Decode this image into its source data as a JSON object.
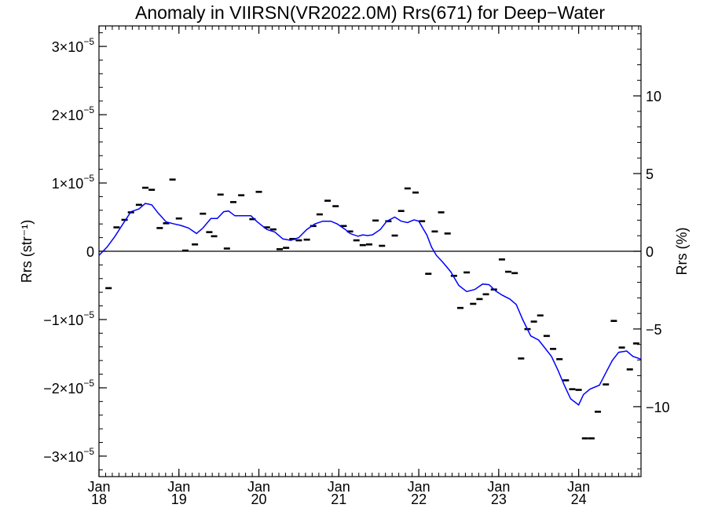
{
  "chart_data": {
    "type": "line",
    "title": "Anomaly in VIIRSN(VR2022.0M) Rrs(671) for Deep−Water",
    "ylabel_left": "Rrs (str⁻¹)",
    "ylabel_right": "Rrs (%)",
    "xlabel": "",
    "xlim": [
      2018.0,
      2024.78
    ],
    "ylim_left": [
      -3.3e-05,
      3.3e-05
    ],
    "ylim_right": [
      -14.5,
      14.5
    ],
    "grid": false,
    "legend": "none",
    "colors": {
      "line": "#0000ff",
      "markers": "#000000",
      "zero_line": "#000000"
    },
    "left_ticks": [
      {
        "value": 3e-05,
        "mant": "3×10",
        "exp": "−5"
      },
      {
        "value": 2e-05,
        "mant": "2×10",
        "exp": "−5"
      },
      {
        "value": 1e-05,
        "mant": "1×10",
        "exp": "−5"
      },
      {
        "value": 0,
        "mant": "0",
        "exp": ""
      },
      {
        "value": -1e-05,
        "mant": "−1×10",
        "exp": "−5"
      },
      {
        "value": -2e-05,
        "mant": "−2×10",
        "exp": "−5"
      },
      {
        "value": -3e-05,
        "mant": "−3×10",
        "exp": "−5"
      }
    ],
    "right_ticks": [
      {
        "value": 10,
        "label": "10"
      },
      {
        "value": 5,
        "label": "5"
      },
      {
        "value": 0,
        "label": "0"
      },
      {
        "value": -5,
        "label": "−5"
      },
      {
        "value": -10,
        "label": "−10"
      }
    ],
    "x_ticks": [
      {
        "value": 2018,
        "month": "Jan",
        "year": "18"
      },
      {
        "value": 2019,
        "month": "Jan",
        "year": "19"
      },
      {
        "value": 2020,
        "month": "Jan",
        "year": "20"
      },
      {
        "value": 2021,
        "month": "Jan",
        "year": "21"
      },
      {
        "value": 2022,
        "month": "Jan",
        "year": "22"
      },
      {
        "value": 2023,
        "month": "Jan",
        "year": "23"
      },
      {
        "value": 2024,
        "month": "Jan",
        "year": "24"
      }
    ],
    "series": [
      {
        "kind": "points",
        "x": [
          2018.12,
          2018.22,
          2018.32,
          2018.4,
          2018.5,
          2018.58,
          2018.66,
          2018.76,
          2018.84,
          2018.92,
          2019.0,
          2019.08,
          2019.2,
          2019.3,
          2019.38,
          2019.44,
          2019.52,
          2019.6,
          2019.68,
          2019.78,
          2019.92,
          2020.0,
          2020.1,
          2020.18,
          2020.26,
          2020.34,
          2020.42,
          2020.5,
          2020.6,
          2020.68,
          2020.76,
          2020.86,
          2020.96,
          2021.06,
          2021.14,
          2021.22,
          2021.3,
          2021.38,
          2021.46,
          2021.54,
          2021.62,
          2021.7,
          2021.78,
          2021.86,
          2021.96,
          2022.04,
          2022.12,
          2022.2,
          2022.28,
          2022.36,
          2022.44,
          2022.52,
          2022.6,
          2022.68,
          2022.76,
          2022.84,
          2022.94,
          2023.04,
          2023.12,
          2023.2,
          2023.28,
          2023.36,
          2023.44,
          2023.52,
          2023.6,
          2023.68,
          2023.76,
          2023.84,
          2023.92,
          2024.0,
          2024.08,
          2024.16,
          2024.24,
          2024.34,
          2024.44,
          2024.54,
          2024.64,
          2024.72
        ],
        "y": [
          -5.4e-06,
          3.5e-06,
          4.6e-06,
          5.7e-06,
          6.8e-06,
          9.3e-06,
          9e-06,
          3.4e-06,
          4.1e-06,
          1.05e-05,
          4.8e-06,
          1e-07,
          1e-06,
          5.5e-06,
          2.8e-06,
          2.2e-06,
          8.3e-06,
          4e-07,
          7.2e-06,
          8.2e-06,
          4.7e-06,
          8.7e-06,
          3.5e-06,
          3.2e-06,
          3e-07,
          5e-07,
          1.8e-06,
          1.6e-06,
          1.7e-06,
          3.7e-06,
          5.4e-06,
          7.4e-06,
          6.6e-06,
          3.7e-06,
          2.9e-06,
          1.6e-06,
          9e-07,
          1e-06,
          4.5e-06,
          8e-07,
          4.4e-06,
          2.3e-06,
          5.9e-06,
          9.2e-06,
          8.6e-06,
          4.4e-06,
          -3.3e-06,
          2.9e-06,
          5.7e-06,
          2.6e-06,
          -3.6e-06,
          -8.3e-06,
          -3.1e-06,
          -7.7e-06,
          -7e-06,
          -6.3e-06,
          -5.6e-06,
          -1.2e-06,
          -3e-06,
          -3.2e-06,
          -1.57e-05,
          -1.14e-05,
          -1.03e-05,
          -9.4e-06,
          -1.24e-05,
          -1.43e-05,
          -1.58e-05,
          -1.89e-05,
          -2.02e-05,
          -2.03e-05,
          -2.74e-05,
          -2.74e-05,
          -2.35e-05,
          -1.95e-05,
          -1.02e-05,
          -1.41e-05,
          -1.73e-05,
          -1.35e-05
        ]
      },
      {
        "kind": "line",
        "x": [
          2018.0,
          2018.1,
          2018.2,
          2018.3,
          2018.4,
          2018.5,
          2018.58,
          2018.66,
          2018.74,
          2018.84,
          2018.94,
          2019.02,
          2019.12,
          2019.22,
          2019.3,
          2019.4,
          2019.48,
          2019.56,
          2019.62,
          2019.7,
          2019.8,
          2019.9,
          2019.98,
          2020.1,
          2020.2,
          2020.3,
          2020.4,
          2020.5,
          2020.6,
          2020.7,
          2020.8,
          2020.9,
          2020.98,
          2021.08,
          2021.14,
          2021.24,
          2021.3,
          2021.36,
          2021.42,
          2021.52,
          2021.6,
          2021.7,
          2021.78,
          2021.86,
          2021.94,
          2022.0,
          2022.06,
          2022.1,
          2022.16,
          2022.22,
          2022.3,
          2022.4,
          2022.5,
          2022.6,
          2022.7,
          2022.8,
          2022.88,
          2022.96,
          2023.04,
          2023.14,
          2023.22,
          2023.3,
          2023.4,
          2023.5,
          2023.58,
          2023.66,
          2023.74,
          2023.82,
          2023.9,
          2024.0,
          2024.06,
          2024.14,
          2024.26,
          2024.34,
          2024.42,
          2024.5,
          2024.6,
          2024.68,
          2024.78
        ],
        "y": [
          -6e-07,
          6e-07,
          2.2e-06,
          4e-06,
          5.8e-06,
          6.2e-06,
          7e-06,
          6.8e-06,
          5.6e-06,
          4.3e-06,
          4e-06,
          3.8e-06,
          3.4e-06,
          2.6e-06,
          3.4e-06,
          4.8e-06,
          4.8e-06,
          5.8e-06,
          5.9e-06,
          5.2e-06,
          5.2e-06,
          5.2e-06,
          4.3e-06,
          3.2e-06,
          2.8e-06,
          1.8e-06,
          1.6e-06,
          2e-06,
          3.2e-06,
          4e-06,
          4.4e-06,
          4.4e-06,
          4e-06,
          3.2e-06,
          2.6e-06,
          2.2e-06,
          2.4e-06,
          2.3e-06,
          2.4e-06,
          3.2e-06,
          4.4e-06,
          5e-06,
          4.4e-06,
          4.2e-06,
          4.6e-06,
          4.4e-06,
          3.2e-06,
          2.4e-06,
          6e-07,
          -6e-07,
          -1.6e-06,
          -3e-06,
          -5e-06,
          -5.9e-06,
          -5.6e-06,
          -4.8e-06,
          -4.9e-06,
          -5.8e-06,
          -6.4e-06,
          -7e-06,
          -7.8e-06,
          -1e-05,
          -1.24e-05,
          -1.3e-05,
          -1.42e-05,
          -1.54e-05,
          -1.74e-05,
          -1.96e-05,
          -2.16e-05,
          -2.25e-05,
          -2.1e-05,
          -2.02e-05,
          -1.96e-05,
          -1.78e-05,
          -1.6e-05,
          -1.48e-05,
          -1.46e-05,
          -1.54e-05,
          -1.58e-05
        ]
      }
    ]
  }
}
